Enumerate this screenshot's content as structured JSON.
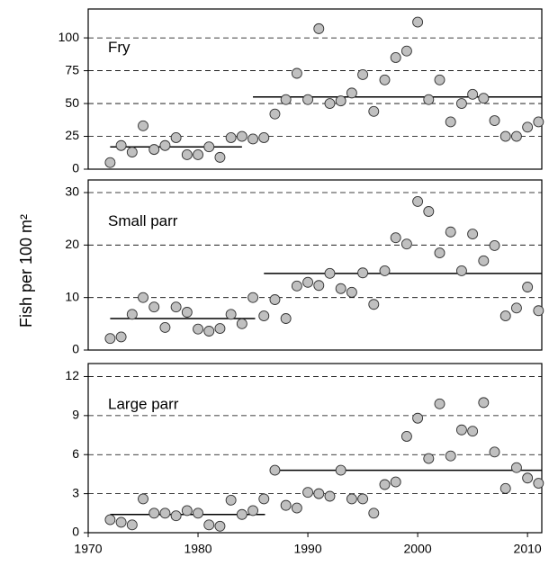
{
  "chart_data": [
    {
      "type": "scatter",
      "title": "Fry",
      "xlim": [
        1970,
        2011.3
      ],
      "ylim": [
        0,
        122
      ],
      "yticks": [
        0,
        25,
        50,
        75,
        100
      ],
      "grid": true,
      "color": "#c0c0c0",
      "x": [
        1972,
        1973,
        1974,
        1975,
        1976,
        1977,
        1978,
        1979,
        1980,
        1981,
        1982,
        1983,
        1984,
        1985,
        1986,
        1987,
        1988,
        1989,
        1990,
        1991,
        1992,
        1993,
        1994,
        1995,
        1996,
        1997,
        1998,
        1999,
        2000,
        2001,
        2002,
        2003,
        2004,
        2005,
        2006,
        2007,
        2008,
        2009,
        2010,
        2011
      ],
      "values": [
        5,
        18,
        13,
        33,
        15,
        18,
        24,
        11,
        11,
        17,
        9,
        24,
        25,
        23,
        24,
        42,
        53,
        73,
        53,
        107,
        50,
        52,
        58,
        72,
        44,
        68,
        85,
        90,
        112,
        53,
        68,
        36,
        50,
        57,
        54,
        37,
        25,
        25,
        32,
        36
      ],
      "means": [
        {
          "from": 1972,
          "to": 1984,
          "value": 17
        },
        {
          "from": 1985,
          "to": 2011.3,
          "value": 55
        }
      ]
    },
    {
      "type": "scatter",
      "title": "Small parr",
      "ylabel": "Fish per 100 m²",
      "xlim": [
        1970,
        2011.3
      ],
      "ylim": [
        0,
        32.4
      ],
      "yticks": [
        0,
        10,
        20,
        30
      ],
      "grid": true,
      "color": "#c0c0c0",
      "x": [
        1972,
        1973,
        1974,
        1975,
        1976,
        1977,
        1978,
        1979,
        1980,
        1981,
        1982,
        1983,
        1984,
        1985,
        1986,
        1987,
        1988,
        1989,
        1990,
        1991,
        1992,
        1993,
        1994,
        1995,
        1996,
        1997,
        1998,
        1999,
        2000,
        2001,
        2002,
        2003,
        2004,
        2005,
        2006,
        2007,
        2008,
        2009,
        2010,
        2011
      ],
      "values": [
        2.2,
        2.5,
        6.8,
        10,
        8.2,
        4.3,
        8.2,
        7.2,
        4,
        3.6,
        4.1,
        6.8,
        5,
        10,
        6.5,
        9.6,
        6,
        12.2,
        12.9,
        12.3,
        14.6,
        11.7,
        11,
        14.7,
        8.7,
        15.1,
        21.4,
        20.2,
        28.3,
        26.4,
        18.5,
        22.5,
        15.1,
        22.1,
        17,
        19.9,
        6.5,
        8,
        12,
        7.5
      ],
      "means": [
        {
          "from": 1972,
          "to": 1985.2,
          "value": 6
        },
        {
          "from": 1986,
          "to": 2011.3,
          "value": 14.6
        }
      ]
    },
    {
      "type": "scatter",
      "title": "Large parr",
      "xlim": [
        1970,
        2011.3
      ],
      "ylim": [
        0,
        13
      ],
      "yticks": [
        0,
        3,
        6,
        9,
        12
      ],
      "xticks": [
        1970,
        1980,
        1990,
        2000,
        2010
      ],
      "grid": true,
      "color": "#c0c0c0",
      "x": [
        1972,
        1973,
        1974,
        1975,
        1976,
        1977,
        1978,
        1979,
        1980,
        1981,
        1982,
        1983,
        1984,
        1985,
        1986,
        1987,
        1988,
        1989,
        1990,
        1991,
        1992,
        1993,
        1994,
        1995,
        1996,
        1997,
        1998,
        1999,
        2000,
        2001,
        2002,
        2003,
        2004,
        2005,
        2006,
        2007,
        2008,
        2009,
        2010,
        2011
      ],
      "values": [
        1,
        0.8,
        0.6,
        2.6,
        1.5,
        1.5,
        1.3,
        1.7,
        1.5,
        0.6,
        0.5,
        2.5,
        1.4,
        1.7,
        2.6,
        4.8,
        2.1,
        1.9,
        3.1,
        3,
        2.8,
        4.8,
        2.6,
        2.6,
        1.5,
        3.7,
        3.9,
        7.4,
        8.8,
        5.7,
        9.9,
        5.9,
        7.9,
        7.8,
        10,
        6.2,
        3.4,
        5,
        4.2,
        3.8
      ],
      "means": [
        {
          "from": 1972,
          "to": 1986.1,
          "value": 1.4
        },
        {
          "from": 1987,
          "to": 2011.3,
          "value": 4.8
        }
      ]
    }
  ]
}
